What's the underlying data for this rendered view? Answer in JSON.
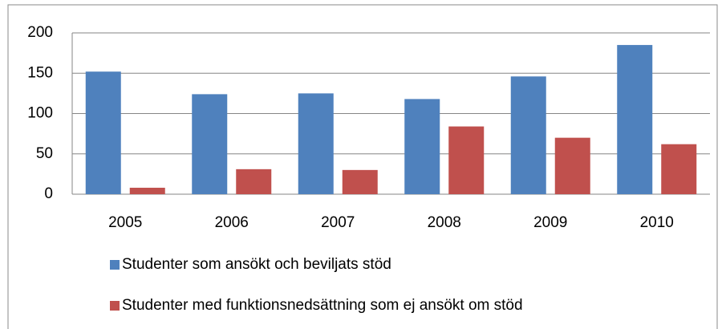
{
  "chart_data": {
    "type": "bar",
    "categories": [
      "2005",
      "2006",
      "2007",
      "2008",
      "2009",
      "2010"
    ],
    "series": [
      {
        "name": "Studenter som ansökt och beviljats stöd",
        "color": "#4f81bd",
        "values": [
          152,
          124,
          125,
          118,
          146,
          185
        ]
      },
      {
        "name": "Studenter med funktionsnedsättning som ej ansökt om stöd",
        "color": "#c0504d",
        "values": [
          8,
          31,
          30,
          84,
          70,
          62
        ]
      }
    ],
    "ylim": [
      0,
      200
    ],
    "yticks": [
      0,
      50,
      100,
      150,
      200
    ],
    "grid": true,
    "legend": "bottom"
  }
}
